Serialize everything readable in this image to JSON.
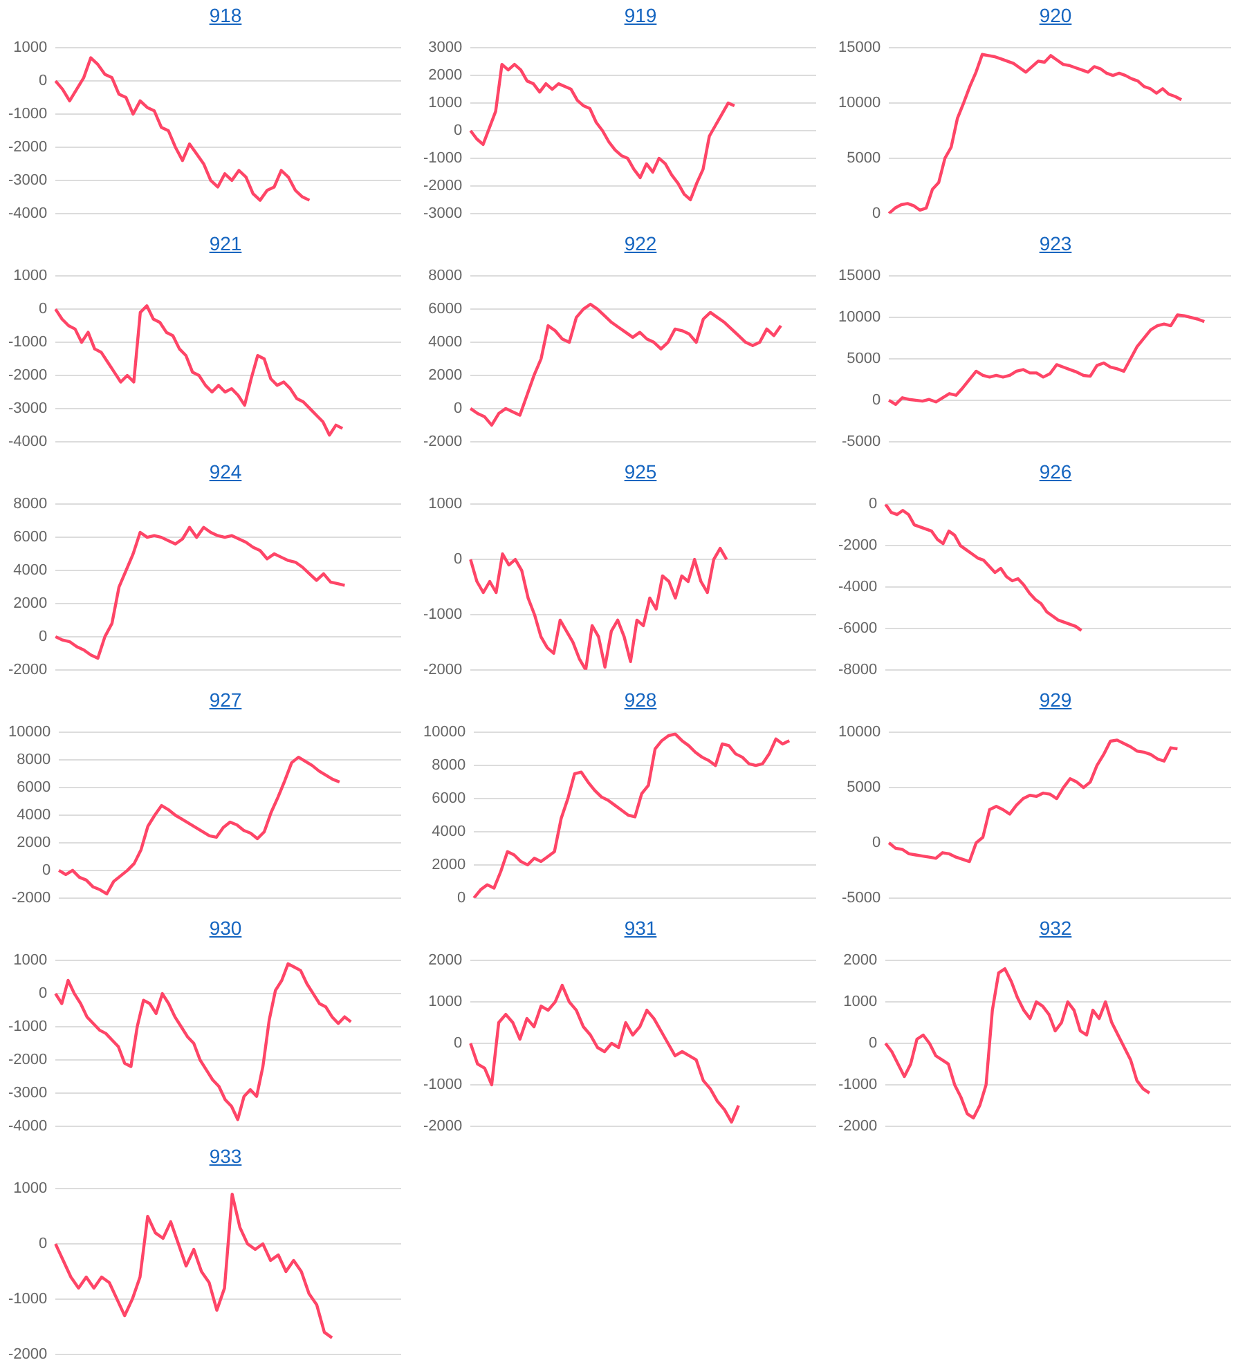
{
  "chart_data": [
    {
      "type": "line",
      "title": "918",
      "marker": "none",
      "grid": "y",
      "tick_labels": "y",
      "ylim": [
        -4000,
        1000
      ],
      "yticks": [
        -4000,
        -3000,
        -2000,
        -1000,
        0,
        1000
      ],
      "categories": [
        null,
        null,
        null,
        null,
        null,
        null,
        null,
        null,
        null,
        null,
        null,
        null,
        null,
        null,
        null,
        null,
        null,
        null,
        null,
        null,
        null,
        null,
        null,
        null,
        null,
        null,
        null,
        null,
        null,
        null,
        null,
        null,
        null,
        null,
        null,
        null,
        null,
        null,
        null,
        null,
        null,
        null,
        null,
        null,
        null,
        null,
        null,
        null,
        null,
        null
      ],
      "series": [
        {
          "color": "#fe4567",
          "values": [
            0,
            -250,
            -600,
            -250,
            100,
            700,
            500,
            200,
            100,
            -400,
            -500,
            -1000,
            -600,
            -800,
            -900,
            -1400,
            -1500,
            -2000,
            -2400,
            -1900,
            -2200,
            -2500,
            -3000,
            -3200,
            -2800,
            -3000,
            -2700,
            -2900,
            -3400,
            -3600,
            -3300,
            -3200,
            -2700,
            -2900,
            -3300,
            -3500,
            -3600,
            null,
            null,
            null,
            null,
            null,
            null,
            null,
            null,
            null,
            null,
            null,
            null,
            null
          ]
        }
      ]
    },
    {
      "type": "line",
      "title": "919",
      "marker": "none",
      "grid": "y",
      "tick_labels": "y",
      "ylim": [
        -3000,
        3000
      ],
      "yticks": [
        -3000,
        -2000,
        -1000,
        0,
        1000,
        2000,
        3000
      ],
      "categories": [
        null,
        null,
        null,
        null,
        null,
        null,
        null,
        null,
        null,
        null,
        null,
        null,
        null,
        null,
        null,
        null,
        null,
        null,
        null,
        null,
        null,
        null,
        null,
        null,
        null,
        null,
        null,
        null,
        null,
        null,
        null,
        null,
        null,
        null,
        null,
        null,
        null,
        null,
        null,
        null,
        null,
        null,
        null,
        null,
        null,
        null,
        null,
        null,
        null,
        null,
        null,
        null,
        null,
        null,
        null,
        null
      ],
      "series": [
        {
          "color": "#fe4567",
          "values": [
            0,
            -300,
            -500,
            100,
            700,
            2400,
            2200,
            2400,
            2200,
            1800,
            1700,
            1400,
            1700,
            1500,
            1700,
            1600,
            1500,
            1100,
            900,
            800,
            300,
            0,
            -400,
            -700,
            -900,
            -1000,
            -1400,
            -1700,
            -1200,
            -1500,
            -1000,
            -1200,
            -1600,
            -1900,
            -2300,
            -2500,
            -1900,
            -1400,
            -200,
            200,
            600,
            1000,
            900,
            null,
            null,
            null,
            null,
            null,
            null,
            null,
            null,
            null,
            null,
            null,
            null,
            null
          ]
        }
      ]
    },
    {
      "type": "line",
      "title": "920",
      "marker": "none",
      "grid": "y",
      "tick_labels": "y",
      "ylim": [
        0,
        15000
      ],
      "yticks": [
        0,
        5000,
        10000,
        15000
      ],
      "categories": [
        null,
        null,
        null,
        null,
        null,
        null,
        null,
        null,
        null,
        null,
        null,
        null,
        null,
        null,
        null,
        null,
        null,
        null,
        null,
        null,
        null,
        null,
        null,
        null,
        null,
        null,
        null,
        null,
        null,
        null,
        null,
        null,
        null,
        null,
        null,
        null,
        null,
        null,
        null,
        null,
        null,
        null,
        null,
        null,
        null,
        null,
        null,
        null,
        null,
        null,
        null,
        null,
        null,
        null,
        null,
        null
      ],
      "series": [
        {
          "color": "#fe4567",
          "values": [
            0,
            500,
            800,
            900,
            700,
            300,
            500,
            2200,
            2800,
            5000,
            6000,
            8600,
            10000,
            11500,
            12800,
            14400,
            14300,
            14200,
            14000,
            13800,
            13600,
            13200,
            12800,
            13300,
            13800,
            13700,
            14300,
            13900,
            13500,
            13400,
            13200,
            13000,
            12800,
            13300,
            13100,
            12700,
            12500,
            12700,
            12500,
            12200,
            12000,
            11500,
            11300,
            10900,
            11300,
            10800,
            10600,
            10300,
            null,
            null,
            null,
            null,
            null,
            null,
            null,
            null
          ]
        }
      ]
    },
    {
      "type": "line",
      "title": "921",
      "marker": "none",
      "grid": "y",
      "tick_labels": "y",
      "ylim": [
        -4000,
        1000
      ],
      "yticks": [
        -4000,
        -3000,
        -2000,
        -1000,
        0,
        1000
      ],
      "categories": [
        null,
        null,
        null,
        null,
        null,
        null,
        null,
        null,
        null,
        null,
        null,
        null,
        null,
        null,
        null,
        null,
        null,
        null,
        null,
        null,
        null,
        null,
        null,
        null,
        null,
        null,
        null,
        null,
        null,
        null,
        null,
        null,
        null,
        null,
        null,
        null,
        null,
        null,
        null,
        null,
        null,
        null,
        null,
        null,
        null,
        null,
        null,
        null,
        null,
        null,
        null,
        null,
        null,
        null
      ],
      "series": [
        {
          "color": "#fe4567",
          "values": [
            0,
            -300,
            -500,
            -600,
            -1000,
            -700,
            -1200,
            -1300,
            -1600,
            -1900,
            -2200,
            -2000,
            -2200,
            -100,
            100,
            -300,
            -400,
            -700,
            -800,
            -1200,
            -1400,
            -1900,
            -2000,
            -2300,
            -2500,
            -2300,
            -2500,
            -2400,
            -2600,
            -2900,
            -2100,
            -1400,
            -1500,
            -2100,
            -2300,
            -2200,
            -2400,
            -2700,
            -2800,
            -3000,
            -3200,
            -3400,
            -3800,
            -3500,
            -3600,
            null,
            null,
            null,
            null,
            null,
            null,
            null,
            null,
            null
          ]
        }
      ]
    },
    {
      "type": "line",
      "title": "922",
      "marker": "none",
      "grid": "y",
      "tick_labels": "y",
      "ylim": [
        -2000,
        8000
      ],
      "yticks": [
        -2000,
        0,
        2000,
        4000,
        6000,
        8000
      ],
      "categories": [
        null,
        null,
        null,
        null,
        null,
        null,
        null,
        null,
        null,
        null,
        null,
        null,
        null,
        null,
        null,
        null,
        null,
        null,
        null,
        null,
        null,
        null,
        null,
        null,
        null,
        null,
        null,
        null,
        null,
        null,
        null,
        null,
        null,
        null,
        null,
        null,
        null,
        null,
        null,
        null,
        null,
        null,
        null,
        null,
        null,
        null,
        null,
        null,
        null,
        null
      ],
      "series": [
        {
          "color": "#fe4567",
          "values": [
            0,
            -300,
            -500,
            -1000,
            -300,
            0,
            -200,
            -400,
            800,
            2000,
            3000,
            5000,
            4700,
            4200,
            4000,
            5500,
            6000,
            6300,
            6000,
            5600,
            5200,
            4900,
            4600,
            4300,
            4600,
            4200,
            4000,
            3600,
            4000,
            4800,
            4700,
            4500,
            4000,
            5400,
            5800,
            5500,
            5200,
            4800,
            4400,
            4000,
            3800,
            4000,
            4800,
            4400,
            5000,
            null,
            null,
            null,
            null,
            null
          ]
        }
      ]
    },
    {
      "type": "line",
      "title": "923",
      "marker": "none",
      "grid": "y",
      "tick_labels": "y",
      "ylim": [
        -5000,
        15000
      ],
      "yticks": [
        -5000,
        0,
        5000,
        10000,
        15000
      ],
      "categories": [
        null,
        null,
        null,
        null,
        null,
        null,
        null,
        null,
        null,
        null,
        null,
        null,
        null,
        null,
        null,
        null,
        null,
        null,
        null,
        null,
        null,
        null,
        null,
        null,
        null,
        null,
        null,
        null,
        null,
        null,
        null,
        null,
        null,
        null,
        null,
        null,
        null,
        null,
        null,
        null,
        null,
        null,
        null,
        null,
        null,
        null,
        null,
        null,
        null,
        null,
        null,
        null
      ],
      "series": [
        {
          "color": "#fe4567",
          "values": [
            0,
            -500,
            300,
            100,
            0,
            -100,
            100,
            -200,
            300,
            800,
            600,
            1500,
            2500,
            3500,
            3000,
            2800,
            3000,
            2800,
            3000,
            3500,
            3700,
            3300,
            3300,
            2800,
            3200,
            4300,
            4000,
            3700,
            3400,
            3000,
            2900,
            4200,
            4500,
            4000,
            3800,
            3500,
            5000,
            6500,
            7500,
            8500,
            9000,
            9200,
            9000,
            10300,
            10200,
            10000,
            9800,
            9500,
            null,
            null,
            null,
            null
          ]
        }
      ]
    },
    {
      "type": "line",
      "title": "924",
      "marker": "none",
      "grid": "y",
      "tick_labels": "y",
      "ylim": [
        -2000,
        8000
      ],
      "yticks": [
        -2000,
        0,
        2000,
        4000,
        6000,
        8000
      ],
      "categories": [
        null,
        null,
        null,
        null,
        null,
        null,
        null,
        null,
        null,
        null,
        null,
        null,
        null,
        null,
        null,
        null,
        null,
        null,
        null,
        null,
        null,
        null,
        null,
        null,
        null,
        null,
        null,
        null,
        null,
        null,
        null,
        null,
        null,
        null,
        null,
        null,
        null,
        null,
        null,
        null,
        null,
        null,
        null,
        null,
        null,
        null,
        null,
        null,
        null,
        null
      ],
      "series": [
        {
          "color": "#fe4567",
          "values": [
            0,
            -200,
            -300,
            -600,
            -800,
            -1100,
            -1300,
            0,
            800,
            3000,
            4000,
            5000,
            6300,
            6000,
            6100,
            6000,
            5800,
            5600,
            5900,
            6600,
            6000,
            6600,
            6300,
            6100,
            6000,
            6100,
            5900,
            5700,
            5400,
            5200,
            4700,
            5000,
            4800,
            4600,
            4500,
            4200,
            3800,
            3400,
            3800,
            3300,
            3200,
            3100,
            null,
            null,
            null,
            null,
            null,
            null,
            null,
            null
          ]
        }
      ]
    },
    {
      "type": "line",
      "title": "925",
      "marker": "none",
      "grid": "y",
      "tick_labels": "y",
      "ylim": [
        -2000,
        1000
      ],
      "yticks": [
        -2000,
        -1000,
        0,
        1000
      ],
      "categories": [
        null,
        null,
        null,
        null,
        null,
        null,
        null,
        null,
        null,
        null,
        null,
        null,
        null,
        null,
        null,
        null,
        null,
        null,
        null,
        null,
        null,
        null,
        null,
        null,
        null,
        null,
        null,
        null,
        null,
        null,
        null,
        null,
        null,
        null,
        null,
        null,
        null,
        null,
        null,
        null,
        null,
        null,
        null,
        null,
        null,
        null,
        null,
        null,
        null,
        null,
        null,
        null,
        null,
        null,
        null
      ],
      "series": [
        {
          "color": "#fe4567",
          "values": [
            0,
            -400,
            -600,
            -400,
            -600,
            100,
            -100,
            0,
            -200,
            -700,
            -1000,
            -1400,
            -1600,
            -1700,
            -1100,
            -1300,
            -1500,
            -1800,
            -2000,
            -1200,
            -1400,
            -1950,
            -1300,
            -1100,
            -1400,
            -1850,
            -1100,
            -1200,
            -700,
            -900,
            -300,
            -400,
            -700,
            -300,
            -400,
            0,
            -400,
            -600,
            0,
            200,
            0,
            null,
            null,
            null,
            null,
            null,
            null,
            null,
            null,
            null,
            null,
            null,
            null,
            null,
            null
          ]
        }
      ]
    },
    {
      "type": "line",
      "title": "926",
      "marker": "none",
      "grid": "y",
      "tick_labels": "y",
      "ylim": [
        -8000,
        0
      ],
      "yticks": [
        -8000,
        -6000,
        -4000,
        -2000,
        0
      ],
      "categories": [
        null,
        null,
        null,
        null,
        null,
        null,
        null,
        null,
        null,
        null,
        null,
        null,
        null,
        null,
        null,
        null,
        null,
        null,
        null,
        null,
        null,
        null,
        null,
        null,
        null,
        null,
        null,
        null,
        null,
        null,
        null,
        null,
        null,
        null,
        null,
        null,
        null,
        null,
        null,
        null,
        null,
        null,
        null,
        null,
        null,
        null,
        null,
        null,
        null,
        null,
        null,
        null,
        null,
        null,
        null,
        null,
        null,
        null,
        null,
        null,
        null
      ],
      "series": [
        {
          "color": "#fe4567",
          "values": [
            0,
            -400,
            -500,
            -300,
            -500,
            -1000,
            -1100,
            -1200,
            -1300,
            -1700,
            -1900,
            -1300,
            -1500,
            -2000,
            -2200,
            -2400,
            -2600,
            -2700,
            -3000,
            -3300,
            -3100,
            -3500,
            -3700,
            -3600,
            -3900,
            -4300,
            -4600,
            -4800,
            -5200,
            -5400,
            -5600,
            -5700,
            -5800,
            -5900,
            -6100,
            null,
            null,
            null,
            null,
            null,
            null,
            null,
            null,
            null,
            null,
            null,
            null,
            null,
            null,
            null,
            null,
            null,
            null,
            null,
            null,
            null,
            null,
            null,
            null,
            null,
            null
          ]
        }
      ]
    },
    {
      "type": "line",
      "title": "927",
      "marker": "none",
      "grid": "y",
      "tick_labels": "y",
      "ylim": [
        -2000,
        10000
      ],
      "yticks": [
        -2000,
        0,
        2000,
        4000,
        6000,
        8000,
        10000
      ],
      "categories": [
        null,
        null,
        null,
        null,
        null,
        null,
        null,
        null,
        null,
        null,
        null,
        null,
        null,
        null,
        null,
        null,
        null,
        null,
        null,
        null,
        null,
        null,
        null,
        null,
        null,
        null,
        null,
        null,
        null,
        null,
        null,
        null,
        null,
        null,
        null,
        null,
        null,
        null,
        null,
        null,
        null,
        null,
        null,
        null,
        null,
        null,
        null,
        null,
        null,
        null,
        null
      ],
      "series": [
        {
          "color": "#fe4567",
          "values": [
            0,
            -300,
            0,
            -500,
            -700,
            -1200,
            -1400,
            -1700,
            -800,
            -400,
            0,
            500,
            1500,
            3200,
            4000,
            4700,
            4400,
            4000,
            3700,
            3400,
            3100,
            2800,
            2500,
            2400,
            3100,
            3500,
            3300,
            2900,
            2700,
            2300,
            2800,
            4200,
            5300,
            6500,
            7800,
            8200,
            7900,
            7600,
            7200,
            6900,
            6600,
            6400,
            null,
            null,
            null,
            null,
            null,
            null,
            null,
            null,
            null
          ]
        }
      ]
    },
    {
      "type": "line",
      "title": "928",
      "marker": "none",
      "grid": "y",
      "tick_labels": "y",
      "ylim": [
        0,
        10000
      ],
      "yticks": [
        0,
        2000,
        4000,
        6000,
        8000,
        10000
      ],
      "categories": [
        null,
        null,
        null,
        null,
        null,
        null,
        null,
        null,
        null,
        null,
        null,
        null,
        null,
        null,
        null,
        null,
        null,
        null,
        null,
        null,
        null,
        null,
        null,
        null,
        null,
        null,
        null,
        null,
        null,
        null,
        null,
        null,
        null,
        null,
        null,
        null,
        null,
        null,
        null,
        null,
        null,
        null,
        null,
        null,
        null,
        null,
        null,
        null,
        null,
        null,
        null,
        null
      ],
      "series": [
        {
          "color": "#fe4567",
          "values": [
            0,
            500,
            800,
            600,
            1600,
            2800,
            2600,
            2200,
            2000,
            2400,
            2200,
            2500,
            2800,
            4800,
            6000,
            7500,
            7600,
            7000,
            6500,
            6100,
            5900,
            5600,
            5300,
            5000,
            4900,
            6300,
            6800,
            9000,
            9500,
            9800,
            9900,
            9500,
            9200,
            8800,
            8500,
            8300,
            8000,
            9300,
            9200,
            8700,
            8500,
            8100,
            8000,
            8100,
            8700,
            9600,
            9300,
            9500,
            null,
            null,
            null,
            null
          ]
        }
      ]
    },
    {
      "type": "line",
      "title": "929",
      "marker": "none",
      "grid": "y",
      "tick_labels": "y",
      "ylim": [
        -5000,
        10000
      ],
      "yticks": [
        -5000,
        0,
        5000,
        10000
      ],
      "categories": [
        null,
        null,
        null,
        null,
        null,
        null,
        null,
        null,
        null,
        null,
        null,
        null,
        null,
        null,
        null,
        null,
        null,
        null,
        null,
        null,
        null,
        null,
        null,
        null,
        null,
        null,
        null,
        null,
        null,
        null,
        null,
        null,
        null,
        null,
        null,
        null,
        null,
        null,
        null,
        null,
        null,
        null,
        null,
        null,
        null,
        null,
        null,
        null,
        null,
        null,
        null,
        null
      ],
      "series": [
        {
          "color": "#fe4567",
          "values": [
            0,
            -500,
            -600,
            -1000,
            -1100,
            -1200,
            -1300,
            -1400,
            -900,
            -1000,
            -1300,
            -1500,
            -1700,
            0,
            500,
            3000,
            3300,
            3000,
            2600,
            3400,
            4000,
            4300,
            4200,
            4500,
            4400,
            4000,
            5000,
            5800,
            5500,
            5000,
            5500,
            7000,
            8000,
            9200,
            9300,
            9000,
            8700,
            8300,
            8200,
            8000,
            7600,
            7400,
            8600,
            8500,
            null,
            null,
            null,
            null,
            null,
            null,
            null,
            null
          ]
        }
      ]
    },
    {
      "type": "line",
      "title": "930",
      "marker": "none",
      "grid": "y",
      "tick_labels": "y",
      "ylim": [
        -4000,
        1000
      ],
      "yticks": [
        -4000,
        -3000,
        -2000,
        -1000,
        0,
        1000
      ],
      "categories": [
        null,
        null,
        null,
        null,
        null,
        null,
        null,
        null,
        null,
        null,
        null,
        null,
        null,
        null,
        null,
        null,
        null,
        null,
        null,
        null,
        null,
        null,
        null,
        null,
        null,
        null,
        null,
        null,
        null,
        null,
        null,
        null,
        null,
        null,
        null,
        null,
        null,
        null,
        null,
        null,
        null,
        null,
        null,
        null,
        null,
        null,
        null,
        null,
        null,
        null,
        null,
        null,
        null,
        null,
        null,
        null
      ],
      "series": [
        {
          "color": "#fe4567",
          "values": [
            0,
            -300,
            400,
            0,
            -300,
            -700,
            -900,
            -1100,
            -1200,
            -1400,
            -1600,
            -2100,
            -2200,
            -1000,
            -200,
            -300,
            -600,
            0,
            -300,
            -700,
            -1000,
            -1300,
            -1500,
            -2000,
            -2300,
            -2600,
            -2800,
            -3200,
            -3400,
            -3800,
            -3100,
            -2900,
            -3100,
            -2200,
            -800,
            100,
            400,
            900,
            800,
            700,
            300,
            0,
            -300,
            -400,
            -700,
            -900,
            -700,
            -850,
            null,
            null,
            null,
            null,
            null,
            null,
            null,
            null
          ]
        }
      ]
    },
    {
      "type": "line",
      "title": "931",
      "marker": "none",
      "grid": "y",
      "tick_labels": "y",
      "ylim": [
        -2000,
        2000
      ],
      "yticks": [
        -2000,
        -1000,
        0,
        1000,
        2000
      ],
      "categories": [
        null,
        null,
        null,
        null,
        null,
        null,
        null,
        null,
        null,
        null,
        null,
        null,
        null,
        null,
        null,
        null,
        null,
        null,
        null,
        null,
        null,
        null,
        null,
        null,
        null,
        null,
        null,
        null,
        null,
        null,
        null,
        null,
        null,
        null,
        null,
        null,
        null,
        null,
        null,
        null,
        null,
        null,
        null,
        null,
        null,
        null,
        null,
        null,
        null,
        null
      ],
      "series": [
        {
          "color": "#fe4567",
          "values": [
            0,
            -500,
            -600,
            -1000,
            500,
            700,
            500,
            100,
            600,
            400,
            900,
            800,
            1000,
            1400,
            1000,
            800,
            400,
            200,
            -100,
            -200,
            0,
            -100,
            500,
            200,
            400,
            800,
            600,
            300,
            0,
            -300,
            -200,
            -300,
            -400,
            -900,
            -1100,
            -1400,
            -1600,
            -1900,
            -1500,
            null,
            null,
            null,
            null,
            null,
            null,
            null,
            null,
            null,
            null,
            null
          ]
        }
      ]
    },
    {
      "type": "line",
      "title": "932",
      "marker": "none",
      "grid": "y",
      "tick_labels": "y",
      "ylim": [
        -2000,
        2000
      ],
      "yticks": [
        -2000,
        -1000,
        0,
        1000,
        2000
      ],
      "categories": [
        null,
        null,
        null,
        null,
        null,
        null,
        null,
        null,
        null,
        null,
        null,
        null,
        null,
        null,
        null,
        null,
        null,
        null,
        null,
        null,
        null,
        null,
        null,
        null,
        null,
        null,
        null,
        null,
        null,
        null,
        null,
        null,
        null,
        null,
        null,
        null,
        null,
        null,
        null,
        null,
        null,
        null,
        null,
        null,
        null,
        null,
        null,
        null,
        null,
        null,
        null,
        null,
        null,
        null,
        null,
        null
      ],
      "series": [
        {
          "color": "#fe4567",
          "values": [
            0,
            -200,
            -500,
            -800,
            -500,
            100,
            200,
            0,
            -300,
            -400,
            -500,
            -1000,
            -1300,
            -1700,
            -1800,
            -1500,
            -1000,
            800,
            1700,
            1800,
            1500,
            1100,
            800,
            600,
            1000,
            900,
            700,
            300,
            500,
            1000,
            800,
            300,
            200,
            800,
            600,
            1000,
            500,
            200,
            -100,
            -400,
            -900,
            -1100,
            -1200,
            null,
            null,
            null,
            null,
            null,
            null,
            null,
            null,
            null,
            null,
            null,
            null,
            null
          ]
        }
      ]
    },
    {
      "type": "line",
      "title": "933",
      "marker": "none",
      "grid": "y",
      "tick_labels": "y",
      "ylim": [
        -2000,
        1000
      ],
      "yticks": [
        -2000,
        -1000,
        0,
        1000
      ],
      "categories": [
        null,
        null,
        null,
        null,
        null,
        null,
        null,
        null,
        null,
        null,
        null,
        null,
        null,
        null,
        null,
        null,
        null,
        null,
        null,
        null,
        null,
        null,
        null,
        null,
        null,
        null,
        null,
        null,
        null,
        null,
        null,
        null,
        null,
        null,
        null,
        null,
        null,
        null,
        null,
        null,
        null,
        null,
        null,
        null,
        null,
        null
      ],
      "series": [
        {
          "color": "#fe4567",
          "values": [
            0,
            -300,
            -600,
            -800,
            -600,
            -800,
            -600,
            -700,
            -1000,
            -1300,
            -1000,
            -600,
            500,
            200,
            100,
            400,
            0,
            -400,
            -100,
            -500,
            -700,
            -1200,
            -800,
            900,
            300,
            0,
            -100,
            0,
            -300,
            -200,
            -500,
            -300,
            -500,
            -900,
            -1100,
            -1600,
            -1700,
            null,
            null,
            null,
            null,
            null,
            null,
            null,
            null,
            null
          ]
        }
      ]
    }
  ]
}
